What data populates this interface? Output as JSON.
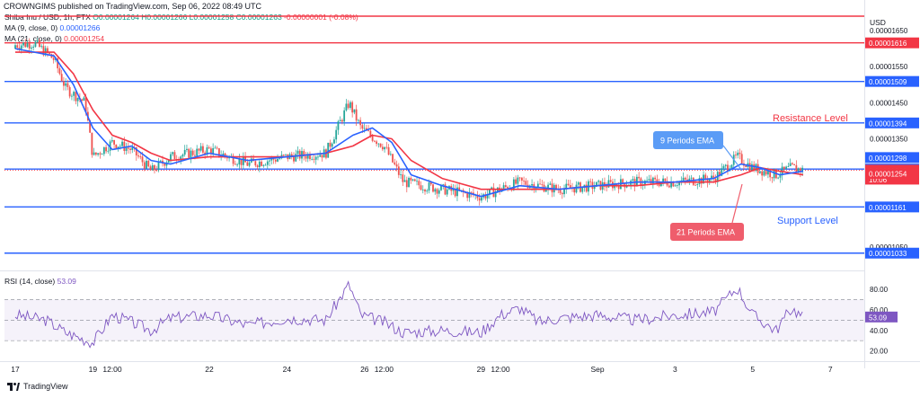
{
  "header": {
    "text": "CROWNGIMS published on TradingView.com, Sep 06, 2022 08:49 UTC"
  },
  "legend": {
    "symbol": "Shiba Inu / USD, 1h, FTX",
    "open": "O0.00001264",
    "high": "H0.00001266",
    "low": "L0.00001258",
    "close": "C0.00001263",
    "change": "-0.00000001 (-0.08%)",
    "ma9_label": "MA (9, close, 0)",
    "ma9_value": "0.00001266",
    "ma21_label": "MA (21, close, 0)",
    "ma21_value": "0.00001254",
    "rsi_label": "RSI (14, close)",
    "rsi_value": "53.09"
  },
  "annotations": {
    "resistance": "Resistance Level",
    "support": "Support Level",
    "ema9": "9 Periods EMA",
    "ema21": "21 Periods EMA"
  },
  "footer": {
    "brand": "TradingView"
  },
  "colors": {
    "ma9": "#2962ff",
    "ma21": "#f23645",
    "up": "#26a69a",
    "down": "#ef5350",
    "level": "#2962ff",
    "top_level": "#f23645",
    "rsi": "#7e57c2"
  },
  "chart_data": {
    "type": "candlestick",
    "price_axis": {
      "unit": "USD",
      "ticks": [
        "0.00001650",
        "0.00001550",
        "0.00001450",
        "0.00001350",
        "0.00001050"
      ],
      "ylim": [
        9.95e-06,
        1.69e-05
      ]
    },
    "x_ticks": [
      {
        "label": "17",
        "day": 0
      },
      {
        "label": "19",
        "day": 2
      },
      {
        "label": "12:00",
        "day": 2.5
      },
      {
        "label": "22",
        "day": 5
      },
      {
        "label": "24",
        "day": 7
      },
      {
        "label": "26",
        "day": 9
      },
      {
        "label": "12:00",
        "day": 9.5
      },
      {
        "label": "29",
        "day": 12
      },
      {
        "label": "12:00",
        "day": 12.5
      },
      {
        "label": "Sep",
        "day": 15
      },
      {
        "label": "3",
        "day": 17
      },
      {
        "label": "5",
        "day": 19
      },
      {
        "label": "7",
        "day": 21
      }
    ],
    "levels": [
      {
        "value": 1.69e-05,
        "label": "",
        "color": "#f23645"
      },
      {
        "value": 1.616e-05,
        "label": "0.00001616",
        "color": "#f23645"
      },
      {
        "value": 1.509e-05,
        "label": "0.00001509",
        "color": "#2962ff"
      },
      {
        "value": 1.394e-05,
        "label": "0.00001394",
        "color": "#2962ff"
      },
      {
        "value": 1.266e-05,
        "label": "0.00001266",
        "color": "#2962ff"
      },
      {
        "value": 1.161e-05,
        "label": "0.00001161",
        "color": "#2962ff"
      },
      {
        "value": 1.033e-05,
        "label": "0.00001033",
        "color": "#2962ff"
      }
    ],
    "price_tags": [
      {
        "value": 1.298e-05,
        "label": "0.00001298",
        "color": "#2962ff"
      },
      {
        "value": 1.263e-05,
        "label": "0.00001263",
        "color": "#f23645",
        "sub": "10:06"
      },
      {
        "value": 1.254e-05,
        "label": "0.00001254",
        "color": "#f23645"
      }
    ],
    "last_price": 1.263e-05,
    "candles_coarse": [
      {
        "day": 0.0,
        "o": 1.6,
        "h": 1.63,
        "l": 1.58,
        "c": 1.61
      },
      {
        "day": 0.5,
        "o": 1.61,
        "h": 1.64,
        "l": 1.59,
        "c": 1.615
      },
      {
        "day": 1.0,
        "o": 1.615,
        "h": 1.63,
        "l": 1.56,
        "c": 1.57
      },
      {
        "day": 1.3,
        "o": 1.57,
        "h": 1.58,
        "l": 1.47,
        "c": 1.49
      },
      {
        "day": 1.8,
        "o": 1.49,
        "h": 1.5,
        "l": 1.44,
        "c": 1.45
      },
      {
        "day": 2.0,
        "o": 1.45,
        "h": 1.46,
        "l": 1.28,
        "c": 1.3
      },
      {
        "day": 2.5,
        "o": 1.3,
        "h": 1.38,
        "l": 1.29,
        "c": 1.34
      },
      {
        "day": 3.0,
        "o": 1.34,
        "h": 1.36,
        "l": 1.3,
        "c": 1.32
      },
      {
        "day": 3.5,
        "o": 1.32,
        "h": 1.34,
        "l": 1.24,
        "c": 1.26
      },
      {
        "day": 4.0,
        "o": 1.26,
        "h": 1.32,
        "l": 1.25,
        "c": 1.3
      },
      {
        "day": 5.0,
        "o": 1.3,
        "h": 1.36,
        "l": 1.28,
        "c": 1.32
      },
      {
        "day": 6.0,
        "o": 1.32,
        "h": 1.33,
        "l": 1.26,
        "c": 1.28
      },
      {
        "day": 7.0,
        "o": 1.28,
        "h": 1.32,
        "l": 1.27,
        "c": 1.3
      },
      {
        "day": 8.0,
        "o": 1.3,
        "h": 1.32,
        "l": 1.29,
        "c": 1.31
      },
      {
        "day": 8.6,
        "o": 1.31,
        "h": 1.48,
        "l": 1.3,
        "c": 1.45
      },
      {
        "day": 8.9,
        "o": 1.45,
        "h": 1.46,
        "l": 1.36,
        "c": 1.38
      },
      {
        "day": 9.5,
        "o": 1.38,
        "h": 1.39,
        "l": 1.32,
        "c": 1.33
      },
      {
        "day": 10.0,
        "o": 1.33,
        "h": 1.34,
        "l": 1.22,
        "c": 1.23
      },
      {
        "day": 11.0,
        "o": 1.23,
        "h": 1.25,
        "l": 1.19,
        "c": 1.21
      },
      {
        "day": 12.0,
        "o": 1.21,
        "h": 1.24,
        "l": 1.17,
        "c": 1.19
      },
      {
        "day": 13.0,
        "o": 1.19,
        "h": 1.26,
        "l": 1.18,
        "c": 1.23
      },
      {
        "day": 14.0,
        "o": 1.23,
        "h": 1.25,
        "l": 1.19,
        "c": 1.21
      },
      {
        "day": 15.0,
        "o": 1.21,
        "h": 1.25,
        "l": 1.2,
        "c": 1.22
      },
      {
        "day": 16.0,
        "o": 1.22,
        "h": 1.24,
        "l": 1.2,
        "c": 1.23
      },
      {
        "day": 17.0,
        "o": 1.23,
        "h": 1.25,
        "l": 1.21,
        "c": 1.23
      },
      {
        "day": 18.0,
        "o": 1.23,
        "h": 1.26,
        "l": 1.22,
        "c": 1.24
      },
      {
        "day": 18.6,
        "o": 1.24,
        "h": 1.34,
        "l": 1.23,
        "c": 1.3
      },
      {
        "day": 19.0,
        "o": 1.3,
        "h": 1.31,
        "l": 1.26,
        "c": 1.27
      },
      {
        "day": 19.6,
        "o": 1.27,
        "h": 1.28,
        "l": 1.23,
        "c": 1.25
      },
      {
        "day": 20.0,
        "o": 1.25,
        "h": 1.3,
        "l": 1.24,
        "c": 1.27
      },
      {
        "day": 20.3,
        "o": 1.27,
        "h": 1.29,
        "l": 1.25,
        "c": 1.263
      }
    ],
    "price_scale_note": "candle values are in units of 0.00001 USD",
    "ema9_coarse": [
      [
        0,
        1.6
      ],
      [
        1,
        1.58
      ],
      [
        1.5,
        1.5
      ],
      [
        2,
        1.38
      ],
      [
        2.5,
        1.32
      ],
      [
        3,
        1.33
      ],
      [
        3.5,
        1.29
      ],
      [
        4,
        1.28
      ],
      [
        5,
        1.31
      ],
      [
        6,
        1.29
      ],
      [
        7,
        1.3
      ],
      [
        8,
        1.31
      ],
      [
        8.7,
        1.36
      ],
      [
        9.2,
        1.38
      ],
      [
        9.7,
        1.34
      ],
      [
        10.2,
        1.25
      ],
      [
        11,
        1.22
      ],
      [
        12,
        1.19
      ],
      [
        13,
        1.22
      ],
      [
        14,
        1.21
      ],
      [
        15,
        1.22
      ],
      [
        16,
        1.23
      ],
      [
        17,
        1.23
      ],
      [
        18,
        1.24
      ],
      [
        18.7,
        1.28
      ],
      [
        19.2,
        1.27
      ],
      [
        19.7,
        1.25
      ],
      [
        20.3,
        1.26
      ]
    ],
    "ema21_coarse": [
      [
        0,
        1.59
      ],
      [
        1,
        1.59
      ],
      [
        1.5,
        1.53
      ],
      [
        2,
        1.43
      ],
      [
        2.5,
        1.36
      ],
      [
        3,
        1.34
      ],
      [
        3.5,
        1.31
      ],
      [
        4,
        1.29
      ],
      [
        5,
        1.3
      ],
      [
        6,
        1.3
      ],
      [
        7,
        1.3
      ],
      [
        8,
        1.31
      ],
      [
        8.7,
        1.33
      ],
      [
        9.2,
        1.36
      ],
      [
        9.7,
        1.35
      ],
      [
        10.2,
        1.29
      ],
      [
        11,
        1.24
      ],
      [
        12,
        1.21
      ],
      [
        13,
        1.21
      ],
      [
        14,
        1.21
      ],
      [
        15,
        1.22
      ],
      [
        16,
        1.22
      ],
      [
        17,
        1.23
      ],
      [
        18,
        1.23
      ],
      [
        18.7,
        1.25
      ],
      [
        19.2,
        1.27
      ],
      [
        19.7,
        1.26
      ],
      [
        20.3,
        1.25
      ]
    ],
    "rsi": {
      "label": "RSI (14, close)",
      "value": 53.09,
      "ticks": [
        "80.00",
        "60.00",
        "40.00",
        "20.00"
      ],
      "ylim": [
        10,
        95
      ],
      "band": [
        30,
        70
      ],
      "coarse": [
        [
          0,
          55
        ],
        [
          0.8,
          50
        ],
        [
          1.3,
          38
        ],
        [
          2,
          28
        ],
        [
          2.5,
          55
        ],
        [
          3,
          48
        ],
        [
          3.5,
          40
        ],
        [
          4,
          52
        ],
        [
          5,
          55
        ],
        [
          6,
          45
        ],
        [
          7,
          52
        ],
        [
          8,
          50
        ],
        [
          8.6,
          85
        ],
        [
          8.9,
          55
        ],
        [
          9.5,
          48
        ],
        [
          10,
          38
        ],
        [
          11,
          40
        ],
        [
          12,
          38
        ],
        [
          12.5,
          55
        ],
        [
          13,
          62
        ],
        [
          13.5,
          48
        ],
        [
          14,
          52
        ],
        [
          15,
          55
        ],
        [
          16,
          50
        ],
        [
          17,
          55
        ],
        [
          18,
          58
        ],
        [
          18.6,
          82
        ],
        [
          19,
          55
        ],
        [
          19.6,
          40
        ],
        [
          20,
          62
        ],
        [
          20.3,
          53
        ]
      ]
    }
  }
}
